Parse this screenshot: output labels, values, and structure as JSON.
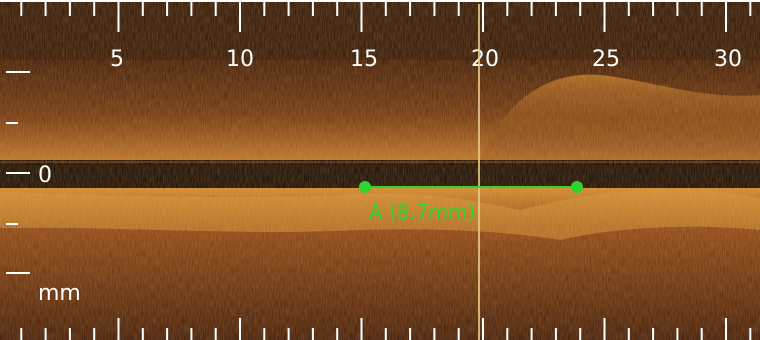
{
  "axis": {
    "x_tick_labels": [
      "5",
      "10",
      "15",
      "20",
      "25",
      "30"
    ],
    "depth_zero_label": "0",
    "unit_label": "mm"
  },
  "measurement": {
    "label": "A (8.7mm)",
    "color": "#2fd42f"
  },
  "colors": {
    "background": "#2a1206",
    "tissue_bright": "#c8822a",
    "tissue_mid": "#7a3d14",
    "band_dark": "#120703",
    "cursor_line": "#e8c98a",
    "tick": "#ffffff"
  },
  "icons": {
    "measurement_endpoint": "green-dot-marker"
  }
}
